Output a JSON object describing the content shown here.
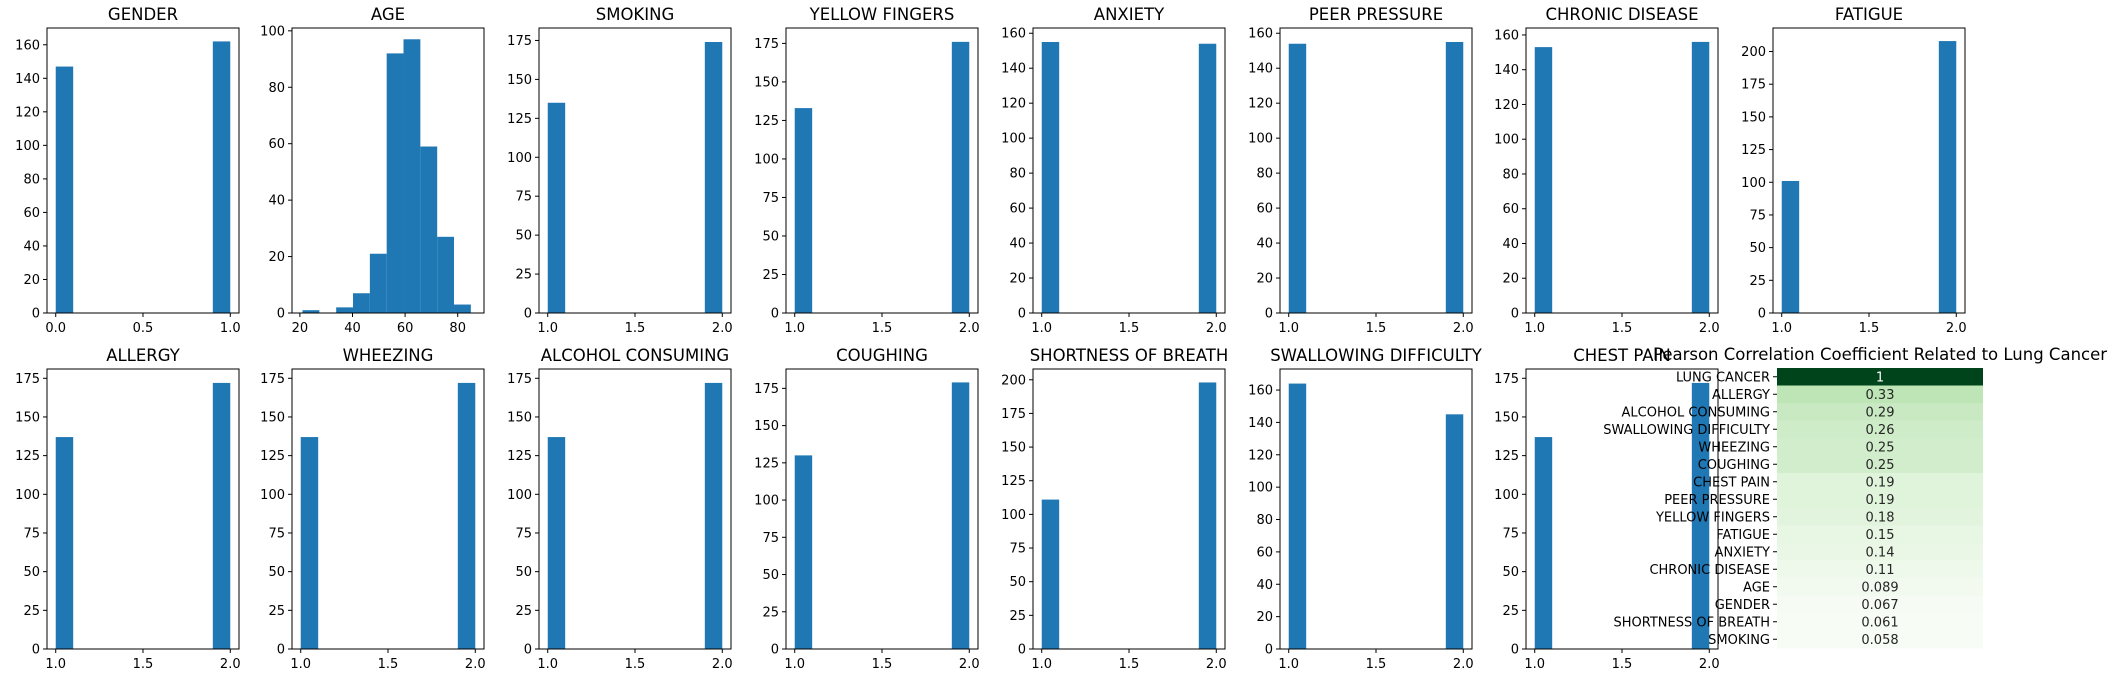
{
  "colors": {
    "bar": "#1f77b4",
    "axis": "#000000",
    "heat_low": "#f7fcf5",
    "heat_high": "#00441b"
  },
  "chart_data": [
    {
      "type": "bar",
      "title": "GENDER",
      "xlim": [
        -0.05,
        1.05
      ],
      "ylim": [
        0,
        170
      ],
      "xticks": [
        "0.0",
        "0.5",
        "1.0"
      ],
      "xtick_values": [
        0,
        0.5,
        1
      ],
      "yticks": [
        0,
        20,
        40,
        60,
        80,
        100,
        120,
        140,
        160
      ],
      "bins": [
        [
          0,
          0.1,
          147
        ],
        [
          0.9,
          1.0,
          162
        ]
      ]
    },
    {
      "type": "bar",
      "title": "AGE",
      "xlim": [
        17,
        90
      ],
      "ylim": [
        0,
        101
      ],
      "xticks": [
        "20",
        "40",
        "60",
        "80"
      ],
      "xtick_values": [
        20,
        40,
        60,
        80
      ],
      "yticks": [
        0,
        20,
        40,
        60,
        80,
        100
      ],
      "bins": [
        [
          21,
          27.4,
          1
        ],
        [
          27.4,
          33.8,
          0
        ],
        [
          33.8,
          40.2,
          2
        ],
        [
          40.2,
          46.6,
          7
        ],
        [
          46.6,
          53,
          21
        ],
        [
          53,
          59.4,
          92
        ],
        [
          59.4,
          65.8,
          97
        ],
        [
          65.8,
          72.2,
          59
        ],
        [
          72.2,
          78.6,
          27
        ],
        [
          78.6,
          85,
          3
        ]
      ]
    },
    {
      "type": "bar",
      "title": "SMOKING",
      "xlim": [
        0.95,
        2.05
      ],
      "ylim": [
        0,
        183
      ],
      "xticks": [
        "1.0",
        "1.5",
        "2.0"
      ],
      "xtick_values": [
        1,
        1.5,
        2
      ],
      "yticks": [
        0,
        25,
        50,
        75,
        100,
        125,
        150,
        175
      ],
      "bins": [
        [
          1.0,
          1.1,
          135
        ],
        [
          1.9,
          2.0,
          174
        ]
      ]
    },
    {
      "type": "bar",
      "title": "YELLOW FINGERS",
      "xlim": [
        0.95,
        2.05
      ],
      "ylim": [
        0,
        185
      ],
      "xticks": [
        "1.0",
        "1.5",
        "2.0"
      ],
      "xtick_values": [
        1,
        1.5,
        2
      ],
      "yticks": [
        0,
        25,
        50,
        75,
        100,
        125,
        150,
        175
      ],
      "bins": [
        [
          1.0,
          1.1,
          133
        ],
        [
          1.9,
          2.0,
          176
        ]
      ]
    },
    {
      "type": "bar",
      "title": "ANXIETY",
      "xlim": [
        0.95,
        2.05
      ],
      "ylim": [
        0,
        163
      ],
      "xticks": [
        "1.0",
        "1.5",
        "2.0"
      ],
      "xtick_values": [
        1,
        1.5,
        2
      ],
      "yticks": [
        0,
        20,
        40,
        60,
        80,
        100,
        120,
        140,
        160
      ],
      "bins": [
        [
          1.0,
          1.1,
          155
        ],
        [
          1.9,
          2.0,
          154
        ]
      ]
    },
    {
      "type": "bar",
      "title": "PEER PRESSURE",
      "xlim": [
        0.95,
        2.05
      ],
      "ylim": [
        0,
        163
      ],
      "xticks": [
        "1.0",
        "1.5",
        "2.0"
      ],
      "xtick_values": [
        1,
        1.5,
        2
      ],
      "yticks": [
        0,
        20,
        40,
        60,
        80,
        100,
        120,
        140,
        160
      ],
      "bins": [
        [
          1.0,
          1.1,
          154
        ],
        [
          1.9,
          2.0,
          155
        ]
      ]
    },
    {
      "type": "bar",
      "title": "CHRONIC DISEASE",
      "xlim": [
        0.95,
        2.05
      ],
      "ylim": [
        0,
        164
      ],
      "xticks": [
        "1.0",
        "1.5",
        "2.0"
      ],
      "xtick_values": [
        1,
        1.5,
        2
      ],
      "yticks": [
        0,
        20,
        40,
        60,
        80,
        100,
        120,
        140,
        160
      ],
      "bins": [
        [
          1.0,
          1.1,
          153
        ],
        [
          1.9,
          2.0,
          156
        ]
      ]
    },
    {
      "type": "bar",
      "title": "FATIGUE",
      "xlim": [
        0.95,
        2.05
      ],
      "ylim": [
        0,
        218
      ],
      "xticks": [
        "1.0",
        "1.5",
        "2.0"
      ],
      "xtick_values": [
        1,
        1.5,
        2
      ],
      "yticks": [
        0,
        25,
        50,
        75,
        100,
        125,
        150,
        175,
        200
      ],
      "bins": [
        [
          1.0,
          1.1,
          101
        ],
        [
          1.9,
          2.0,
          208
        ]
      ]
    },
    {
      "type": "bar",
      "title": "ALLERGY",
      "xlim": [
        0.95,
        2.05
      ],
      "ylim": [
        0,
        181
      ],
      "xticks": [
        "1.0",
        "1.5",
        "2.0"
      ],
      "xtick_values": [
        1,
        1.5,
        2
      ],
      "yticks": [
        0,
        25,
        50,
        75,
        100,
        125,
        150,
        175
      ],
      "bins": [
        [
          1.0,
          1.1,
          137
        ],
        [
          1.9,
          2.0,
          172
        ]
      ]
    },
    {
      "type": "bar",
      "title": "WHEEZING",
      "xlim": [
        0.95,
        2.05
      ],
      "ylim": [
        0,
        181
      ],
      "xticks": [
        "1.0",
        "1.5",
        "2.0"
      ],
      "xtick_values": [
        1,
        1.5,
        2
      ],
      "yticks": [
        0,
        25,
        50,
        75,
        100,
        125,
        150,
        175
      ],
      "bins": [
        [
          1.0,
          1.1,
          137
        ],
        [
          1.9,
          2.0,
          172
        ]
      ]
    },
    {
      "type": "bar",
      "title": "ALCOHOL CONSUMING",
      "xlim": [
        0.95,
        2.05
      ],
      "ylim": [
        0,
        181
      ],
      "xticks": [
        "1.0",
        "1.5",
        "2.0"
      ],
      "xtick_values": [
        1,
        1.5,
        2
      ],
      "yticks": [
        0,
        25,
        50,
        75,
        100,
        125,
        150,
        175
      ],
      "bins": [
        [
          1.0,
          1.1,
          137
        ],
        [
          1.9,
          2.0,
          172
        ]
      ]
    },
    {
      "type": "bar",
      "title": "COUGHING",
      "xlim": [
        0.95,
        2.05
      ],
      "ylim": [
        0,
        188
      ],
      "xticks": [
        "1.0",
        "1.5",
        "2.0"
      ],
      "xtick_values": [
        1,
        1.5,
        2
      ],
      "yticks": [
        0,
        25,
        50,
        75,
        100,
        125,
        150,
        175
      ],
      "bins": [
        [
          1.0,
          1.1,
          130
        ],
        [
          1.9,
          2.0,
          179
        ]
      ]
    },
    {
      "type": "bar",
      "title": "SHORTNESS OF BREATH",
      "xlim": [
        0.95,
        2.05
      ],
      "ylim": [
        0,
        208
      ],
      "xticks": [
        "1.0",
        "1.5",
        "2.0"
      ],
      "xtick_values": [
        1,
        1.5,
        2
      ],
      "yticks": [
        0,
        25,
        50,
        75,
        100,
        125,
        150,
        175,
        200
      ],
      "bins": [
        [
          1.0,
          1.1,
          111
        ],
        [
          1.9,
          2.0,
          198
        ]
      ]
    },
    {
      "type": "bar",
      "title": "SWALLOWING DIFFICULTY",
      "xlim": [
        0.95,
        2.05
      ],
      "ylim": [
        0,
        173
      ],
      "xticks": [
        "1.0",
        "1.5",
        "2.0"
      ],
      "xtick_values": [
        1,
        1.5,
        2
      ],
      "yticks": [
        0,
        20,
        40,
        60,
        80,
        100,
        120,
        140,
        160
      ],
      "bins": [
        [
          1.0,
          1.1,
          164
        ],
        [
          1.9,
          2.0,
          145
        ]
      ]
    },
    {
      "type": "bar",
      "title": "CHEST PAIN",
      "xlim": [
        0.95,
        2.05
      ],
      "ylim": [
        0,
        181
      ],
      "xticks": [
        "1.0",
        "1.5",
        "2.0"
      ],
      "xtick_values": [
        1,
        1.5,
        2
      ],
      "yticks": [
        0,
        25,
        50,
        75,
        100,
        125,
        150,
        175
      ],
      "bins": [
        [
          1.0,
          1.1,
          137
        ],
        [
          1.9,
          2.0,
          172
        ]
      ]
    },
    {
      "type": "heatmap",
      "title": "Pearson Correlation Coefficient Related to Lung Cancer",
      "rows": [
        "LUNG CANCER",
        "ALLERGY",
        "ALCOHOL CONSUMING",
        "SWALLOWING DIFFICULTY",
        "WHEEZING",
        "COUGHING",
        "CHEST PAIN",
        "PEER PRESSURE",
        "YELLOW FINGERS",
        "FATIGUE",
        "ANXIETY",
        "CHRONIC DISEASE",
        "AGE",
        "GENDER",
        "SHORTNESS OF BREATH",
        "SMOKING"
      ],
      "labels": [
        "1",
        "0.33",
        "0.29",
        "0.26",
        "0.25",
        "0.25",
        "0.19",
        "0.19",
        "0.18",
        "0.15",
        "0.14",
        "0.11",
        "0.089",
        "0.067",
        "0.061",
        "0.058"
      ],
      "values": [
        1,
        0.33,
        0.29,
        0.26,
        0.25,
        0.25,
        0.19,
        0.19,
        0.18,
        0.15,
        0.14,
        0.11,
        0.089,
        0.067,
        0.061,
        0.058
      ]
    }
  ]
}
